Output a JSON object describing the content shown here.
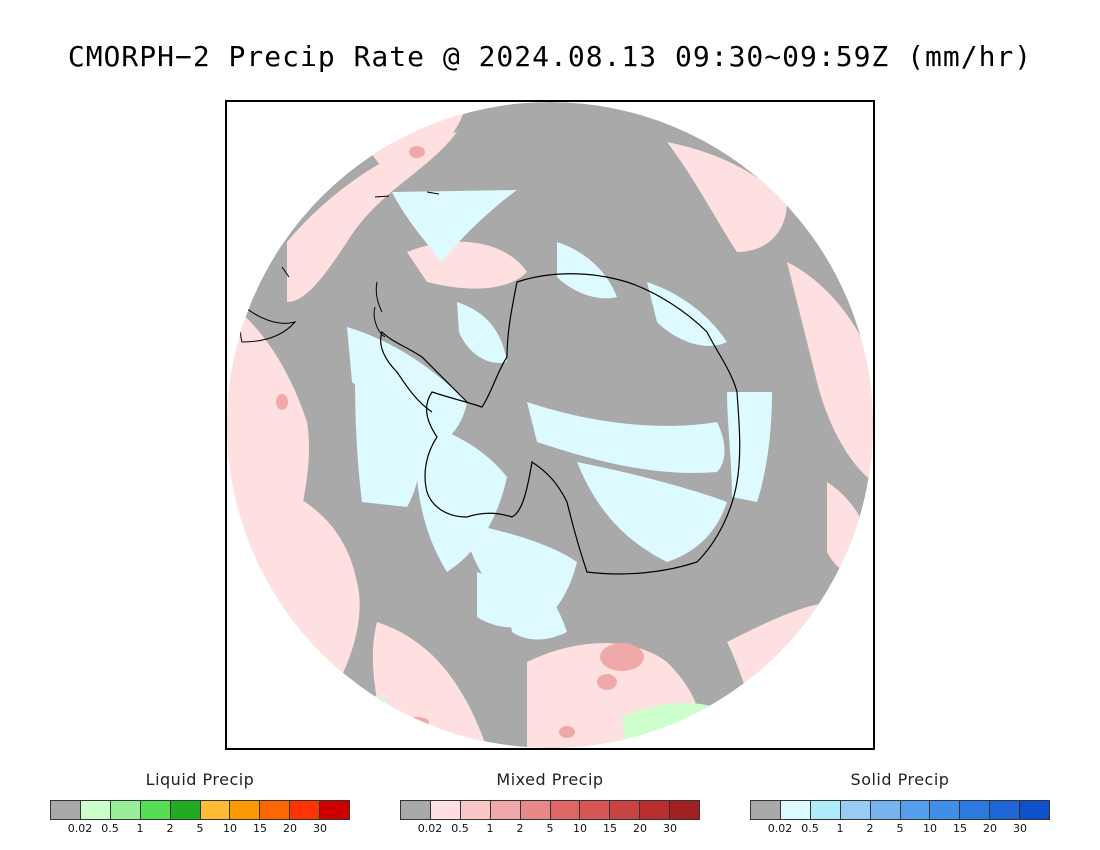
{
  "title": "CMORPH−2 Precip Rate @ 2024.08.13 09:30~09:59Z (mm/hr)",
  "map": {
    "projection": "south polar stereographic",
    "colors": {
      "no_precip": "#a9a9a9",
      "liquid_light": "#ccffcc",
      "mixed_light": "#ffe0e0",
      "mixed_mid": "#f8c8c8",
      "mixed_strong": "#e89090",
      "solid_light": "#dcfaff",
      "coastline": "#000000"
    }
  },
  "legends": [
    {
      "title": "Liquid Precip",
      "colors": [
        "#a9a9a9",
        "#ccffcc",
        "#99ee99",
        "#55dd55",
        "#22aa22",
        "#ffbb33",
        "#ff9900",
        "#ff6600",
        "#ff3300",
        "#cc0000"
      ],
      "ticks": [
        "0.02",
        "0.5",
        "1",
        "2",
        "5",
        "10",
        "15",
        "20",
        "30"
      ]
    },
    {
      "title": "Mixed Precip",
      "colors": [
        "#a9a9a9",
        "#ffe0e0",
        "#f8c8c8",
        "#f0a8a8",
        "#e88888",
        "#e06666",
        "#d85555",
        "#c84444",
        "#b82e2e",
        "#a02020"
      ],
      "ticks": [
        "0.02",
        "0.5",
        "1",
        "2",
        "5",
        "10",
        "15",
        "20",
        "30"
      ]
    },
    {
      "title": "Solid Precip",
      "colors": [
        "#a9a9a9",
        "#dcfaff",
        "#b0ecf8",
        "#99ccf5",
        "#77b4f0",
        "#55a0ee",
        "#3f8ee8",
        "#2c7ae0",
        "#1f66d8",
        "#1050cc"
      ],
      "ticks": [
        "0.02",
        "0.5",
        "1",
        "2",
        "5",
        "10",
        "15",
        "20",
        "30"
      ]
    }
  ]
}
